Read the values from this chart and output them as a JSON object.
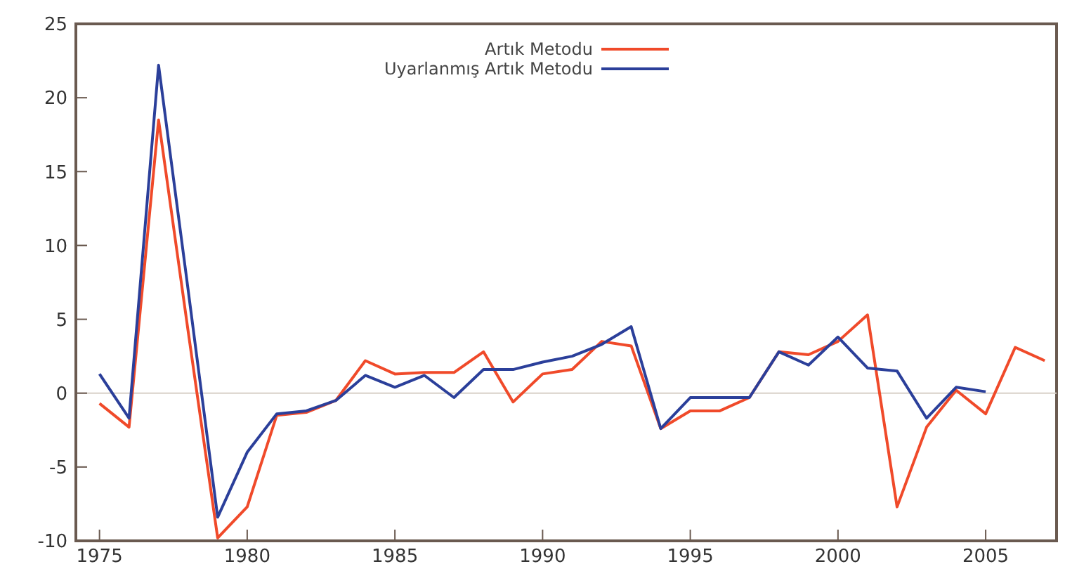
{
  "chart_data": {
    "type": "line",
    "x": [
      1975,
      1976,
      1977,
      1978,
      1979,
      1980,
      1981,
      1982,
      1983,
      1984,
      1985,
      1986,
      1987,
      1988,
      1989,
      1990,
      1991,
      1992,
      1993,
      1994,
      1995,
      1996,
      1997,
      1998,
      1999,
      2000,
      2001,
      2002,
      2003,
      2004,
      2005,
      2006,
      2007
    ],
    "series": [
      {
        "name": "Artık Metodu",
        "color": "#f04a2a",
        "values": [
          -0.7,
          -2.3,
          18.5,
          4.2,
          -9.8,
          -7.7,
          -1.5,
          -1.3,
          -0.5,
          2.2,
          1.3,
          1.4,
          1.4,
          2.8,
          -0.6,
          1.3,
          1.6,
          3.5,
          3.2,
          -2.4,
          -1.2,
          -1.2,
          -0.3,
          2.8,
          2.6,
          3.5,
          5.3,
          -7.7,
          -2.3,
          0.2,
          -1.4,
          3.1,
          2.2
        ]
      },
      {
        "name": "Uyarlanmış Artık Metodu",
        "color": "#2b3f9a",
        "values": [
          1.3,
          -1.7,
          22.2,
          7.0,
          -8.4,
          -4.0,
          -1.4,
          -1.2,
          -0.5,
          1.2,
          0.4,
          1.2,
          -0.3,
          1.6,
          1.6,
          2.1,
          2.5,
          3.3,
          4.5,
          -2.4,
          -0.3,
          -0.3,
          -0.3,
          2.8,
          1.9,
          3.8,
          1.7,
          1.5,
          -1.7,
          0.4,
          0.1,
          null,
          null
        ]
      }
    ],
    "xlim": [
      1974.2,
      2007.4
    ],
    "xticks": [
      1975,
      1980,
      1985,
      1990,
      1995,
      2000,
      2005
    ],
    "ylim": [
      -10,
      25
    ],
    "yticks": [
      -10,
      -5,
      0,
      5,
      10,
      15,
      20,
      25
    ],
    "ref_lines": [
      {
        "axis": "y",
        "value": 0,
        "color": "#d8d0c8"
      }
    ],
    "grid": false,
    "legend": "top",
    "marker": "none",
    "line_style": "solid"
  }
}
